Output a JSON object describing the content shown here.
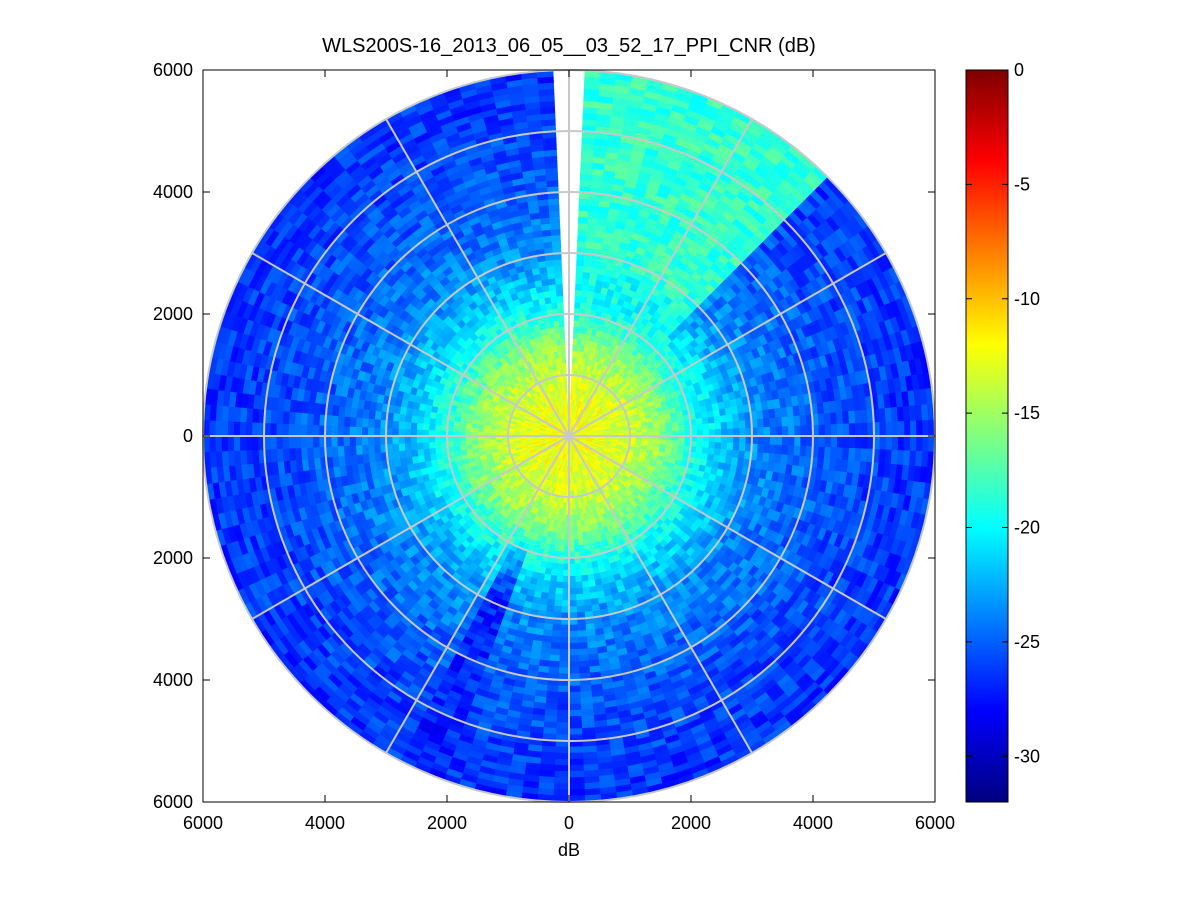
{
  "chart_data": {
    "type": "heatmap",
    "subtype": "polar-ppi",
    "title": "WLS200S-16_2013_06_05__03_52_17_PPI_CNR (dB)",
    "xlabel": "dB",
    "ylabel": "",
    "xlim": [
      -6000,
      6000
    ],
    "ylim": [
      -6000,
      6000
    ],
    "x_ticks": [
      -6000,
      -4000,
      -2000,
      0,
      2000,
      4000,
      6000
    ],
    "x_tick_labels": [
      "6000",
      "4000",
      "2000",
      "0",
      "2000",
      "4000",
      "6000"
    ],
    "y_ticks": [
      6000,
      4000,
      2000,
      0,
      -2000,
      -4000,
      -6000
    ],
    "y_tick_labels": [
      "6000",
      "4000",
      "2000",
      "0",
      "2000",
      "4000",
      "6000"
    ],
    "max_range": 6000,
    "range_rings": [
      1000,
      2000,
      3000,
      4000,
      5000,
      6000
    ],
    "spoke_angles_deg": [
      0,
      30,
      60,
      90,
      120,
      150,
      180,
      210,
      240,
      270,
      300,
      330
    ],
    "gap_azimuth_range_deg": [
      -2,
      2
    ],
    "colorbar": {
      "colormap": "jet",
      "clim": [
        -32,
        0
      ],
      "ticks": [
        0,
        -5,
        -10,
        -15,
        -20,
        -25,
        -30
      ],
      "tick_labels": [
        "0",
        "-5",
        "-10",
        "-15",
        "-20",
        "-25",
        "-30"
      ]
    },
    "cnr_profile": {
      "range_m": [
        0,
        500,
        1000,
        1500,
        2000,
        2500,
        3000,
        4000,
        5000,
        6000
      ],
      "cnr_db": [
        -12,
        -12.5,
        -13.5,
        -15.5,
        -19,
        -21.5,
        -23.5,
        -25,
        -26,
        -26.5
      ]
    },
    "sectors": [
      {
        "name": "north-east high-CNR sector",
        "azimuth_deg": [
          3,
          46
        ],
        "cnr_db_far": -18.5
      },
      {
        "name": "south-west low-CNR wedge",
        "azimuth_deg": [
          200,
          208
        ],
        "cnr_db_far": -27
      }
    ]
  }
}
